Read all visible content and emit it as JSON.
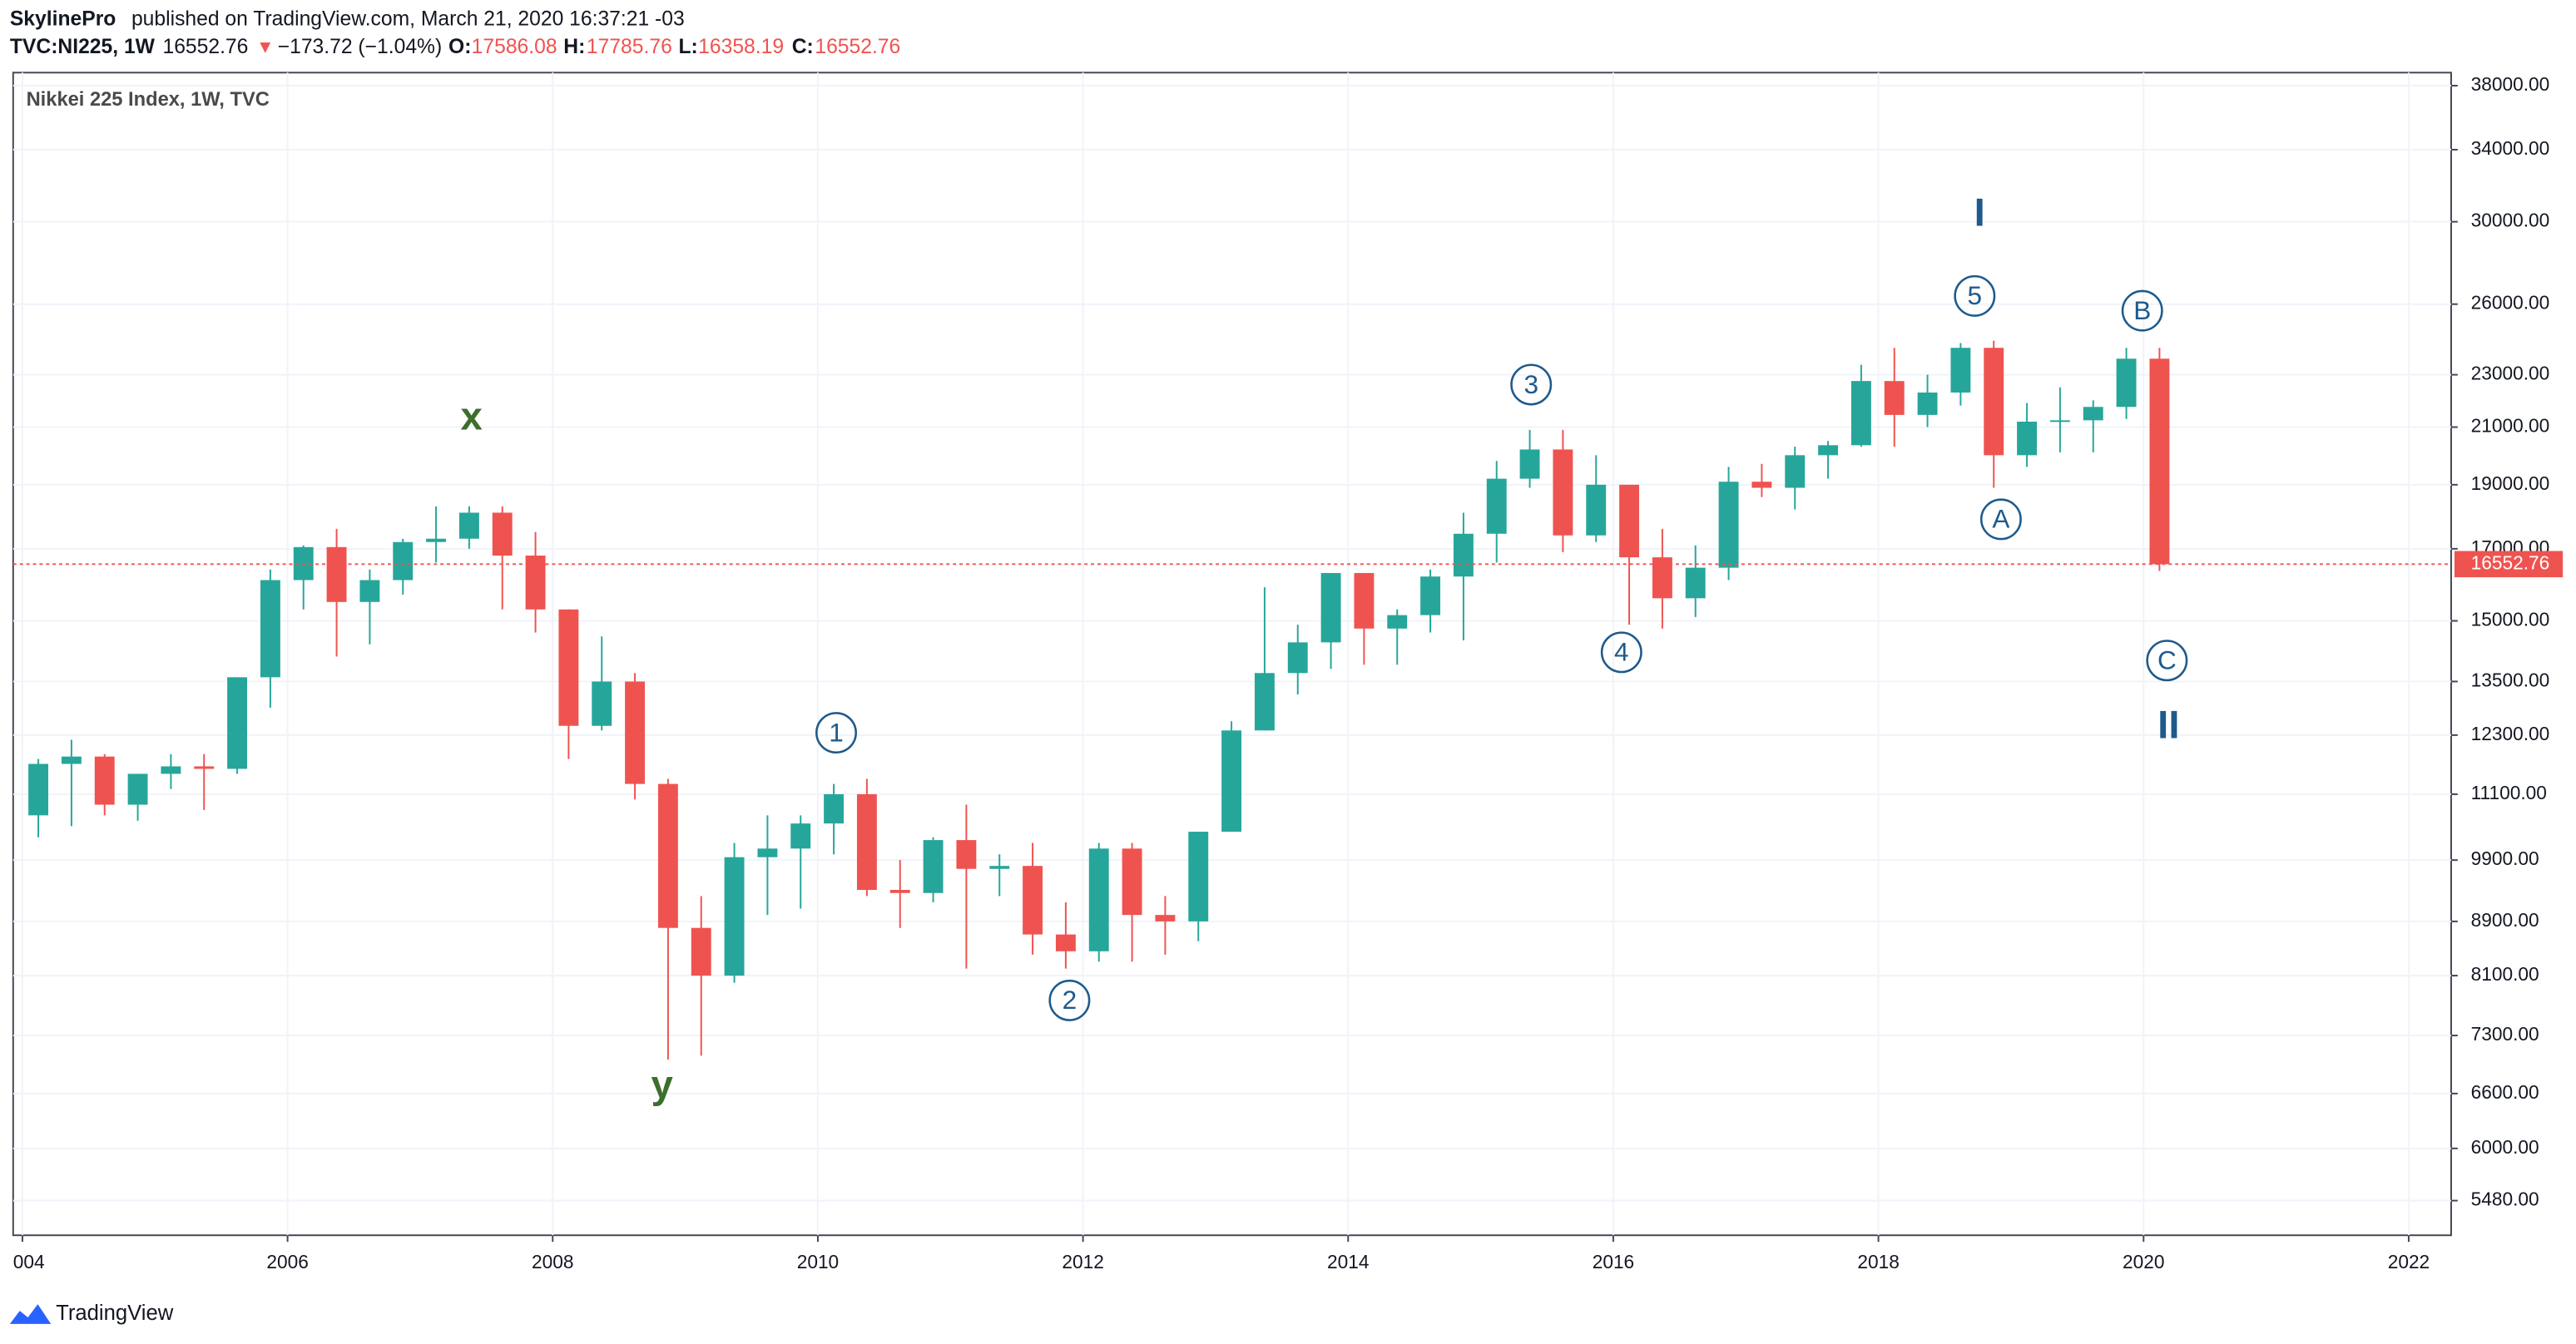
{
  "header": {
    "author": "SkylinePro",
    "published": "published on TradingView.com, March 21, 2020 16:37:21 -03",
    "symbol": "TVC:NI225, 1W",
    "price": "16552.76",
    "arrow": "▼",
    "change": "−173.72 (−1.04%)",
    "o_label": "O:",
    "o": "17586.08",
    "h_label": "H:",
    "h": "17785.76",
    "l_label": "L:",
    "l": "16358.19",
    "c_label": "C:",
    "c": "16552.76"
  },
  "footer": {
    "brand": "TradingView"
  },
  "chart_data": {
    "type": "candlestick",
    "title": "Nikkei 225 Index, 1W, TVC",
    "log_scale": true,
    "grid": true,
    "up_color": "#26a69a",
    "down_color": "#ef5350",
    "last_price": 16552.76,
    "last_price_color": "#ef5350",
    "xlim": [
      2003.93,
      2022.32
    ],
    "xticks": [
      {
        "value": 2004,
        "label": "004"
      },
      2006,
      2008,
      2010,
      2012,
      2014,
      2016,
      2018,
      2020,
      2022
    ],
    "ylim": [
      5160,
      38870
    ],
    "yticks": [
      {
        "value": 38000,
        "label": "38000.00"
      },
      {
        "value": 34000,
        "label": "34000.00"
      },
      {
        "value": 30000,
        "label": "30000.00"
      },
      {
        "value": 26000,
        "label": "26000.00"
      },
      {
        "value": 23000,
        "label": "23000.00"
      },
      {
        "value": 21000,
        "label": "21000.00"
      },
      {
        "value": 19000,
        "label": "19000.00"
      },
      {
        "value": 17000,
        "label": "17000.00"
      },
      {
        "value": 15000,
        "label": "15000.00"
      },
      {
        "value": 13500,
        "label": "13500.00"
      },
      {
        "value": 12300,
        "label": "12300.00"
      },
      {
        "value": 11100,
        "label": "11100.00"
      },
      {
        "value": 9900,
        "label": "9900.00"
      },
      {
        "value": 8900,
        "label": "8900.00"
      },
      {
        "value": 8100,
        "label": "8100.00"
      },
      {
        "value": 7300,
        "label": "7300.00"
      },
      {
        "value": 6600,
        "label": "6600.00"
      },
      {
        "value": 6000,
        "label": "6000.00"
      },
      {
        "value": 5480,
        "label": "5480.00"
      }
    ],
    "x": [
      2004.0,
      2004.25,
      2004.5,
      2004.75,
      2005.0,
      2005.25,
      2005.5,
      2005.75,
      2006.0,
      2006.25,
      2006.5,
      2006.75,
      2007.0,
      2007.25,
      2007.5,
      2007.75,
      2008.0,
      2008.25,
      2008.5,
      2008.75,
      2009.0,
      2009.25,
      2009.5,
      2009.75,
      2010.0,
      2010.25,
      2010.5,
      2010.75,
      2011.0,
      2011.25,
      2011.5,
      2011.75,
      2012.0,
      2012.25,
      2012.5,
      2012.75,
      2013.0,
      2013.25,
      2013.5,
      2013.75,
      2014.0,
      2014.25,
      2014.5,
      2014.75,
      2015.0,
      2015.25,
      2015.5,
      2015.75,
      2016.0,
      2016.25,
      2016.5,
      2016.75,
      2017.0,
      2017.25,
      2017.5,
      2017.75,
      2018.0,
      2018.25,
      2018.5,
      2018.75,
      2019.0,
      2019.25,
      2019.5,
      2019.75,
      2020.0
    ],
    "open": [
      10700,
      11700,
      11850,
      10900,
      11500,
      11650,
      11600,
      13600,
      16100,
      17050,
      15500,
      16100,
      17200,
      17300,
      18100,
      16800,
      15300,
      12500,
      13500,
      11300,
      8800,
      8100,
      9950,
      10100,
      10550,
      11100,
      9400,
      9350,
      10250,
      9750,
      9800,
      8700,
      8450,
      10100,
      9000,
      8900,
      10400,
      12400,
      13700,
      14450,
      16300,
      14800,
      15150,
      16200,
      17450,
      19200,
      20200,
      17400,
      19000,
      16750,
      15600,
      16450,
      19100,
      18900,
      20000,
      20350,
      22750,
      21450,
      22300,
      24100,
      20000,
      21200,
      21250,
      21750,
      23650
    ],
    "high": [
      11800,
      12200,
      11900,
      11500,
      11900,
      11900,
      13600,
      16400,
      17100,
      17600,
      16400,
      17300,
      18300,
      18300,
      18300,
      17500,
      15300,
      14600,
      13700,
      11400,
      9300,
      10200,
      10700,
      10700,
      11300,
      11400,
      9900,
      10300,
      10900,
      10000,
      10200,
      9200,
      10200,
      10200,
      9300,
      10400,
      12600,
      15900,
      14900,
      16300,
      16300,
      15300,
      16400,
      18100,
      19800,
      20900,
      20900,
      20000,
      19000,
      17600,
      17100,
      19600,
      19700,
      20300,
      20500,
      23400,
      24100,
      23000,
      24300,
      24400,
      21900,
      22500,
      22000,
      24100,
      24100
    ],
    "low": [
      10300,
      10500,
      10700,
      10600,
      11200,
      10800,
      11500,
      12900,
      15300,
      14100,
      14400,
      15700,
      16600,
      17000,
      15300,
      14700,
      11800,
      12400,
      11000,
      7000,
      7050,
      8000,
      9000,
      9100,
      10000,
      9300,
      8800,
      9200,
      8200,
      9300,
      8400,
      8200,
      8300,
      8300,
      8400,
      8600,
      10400,
      12400,
      13200,
      13800,
      13900,
      13900,
      14700,
      14500,
      16600,
      18900,
      16900,
      17200,
      14900,
      14800,
      15100,
      16100,
      18600,
      18200,
      19200,
      20300,
      20300,
      21000,
      21800,
      18900,
      19600,
      20100,
      20100,
      21300,
      16358
    ],
    "close": [
      11700,
      11850,
      10900,
      11500,
      11650,
      11600,
      13600,
      16100,
      17050,
      15500,
      16100,
      17200,
      17300,
      18100,
      16800,
      15300,
      12500,
      13500,
      11300,
      8800,
      8100,
      9950,
      10100,
      10550,
      11100,
      9400,
      9350,
      10250,
      9750,
      9800,
      8700,
      8450,
      10100,
      9000,
      8900,
      10400,
      12400,
      13700,
      14450,
      16300,
      14800,
      15150,
      16200,
      17450,
      19200,
      20200,
      17400,
      19000,
      16750,
      15600,
      16450,
      19100,
      18900,
      20000,
      20350,
      22750,
      21450,
      22300,
      24100,
      20000,
      21200,
      21250,
      21750,
      23650,
      16552
    ],
    "annotations": [
      "x",
      "y",
      "1",
      "2",
      "3",
      "4",
      "5",
      "A",
      "B",
      "C",
      "I",
      "II"
    ]
  }
}
